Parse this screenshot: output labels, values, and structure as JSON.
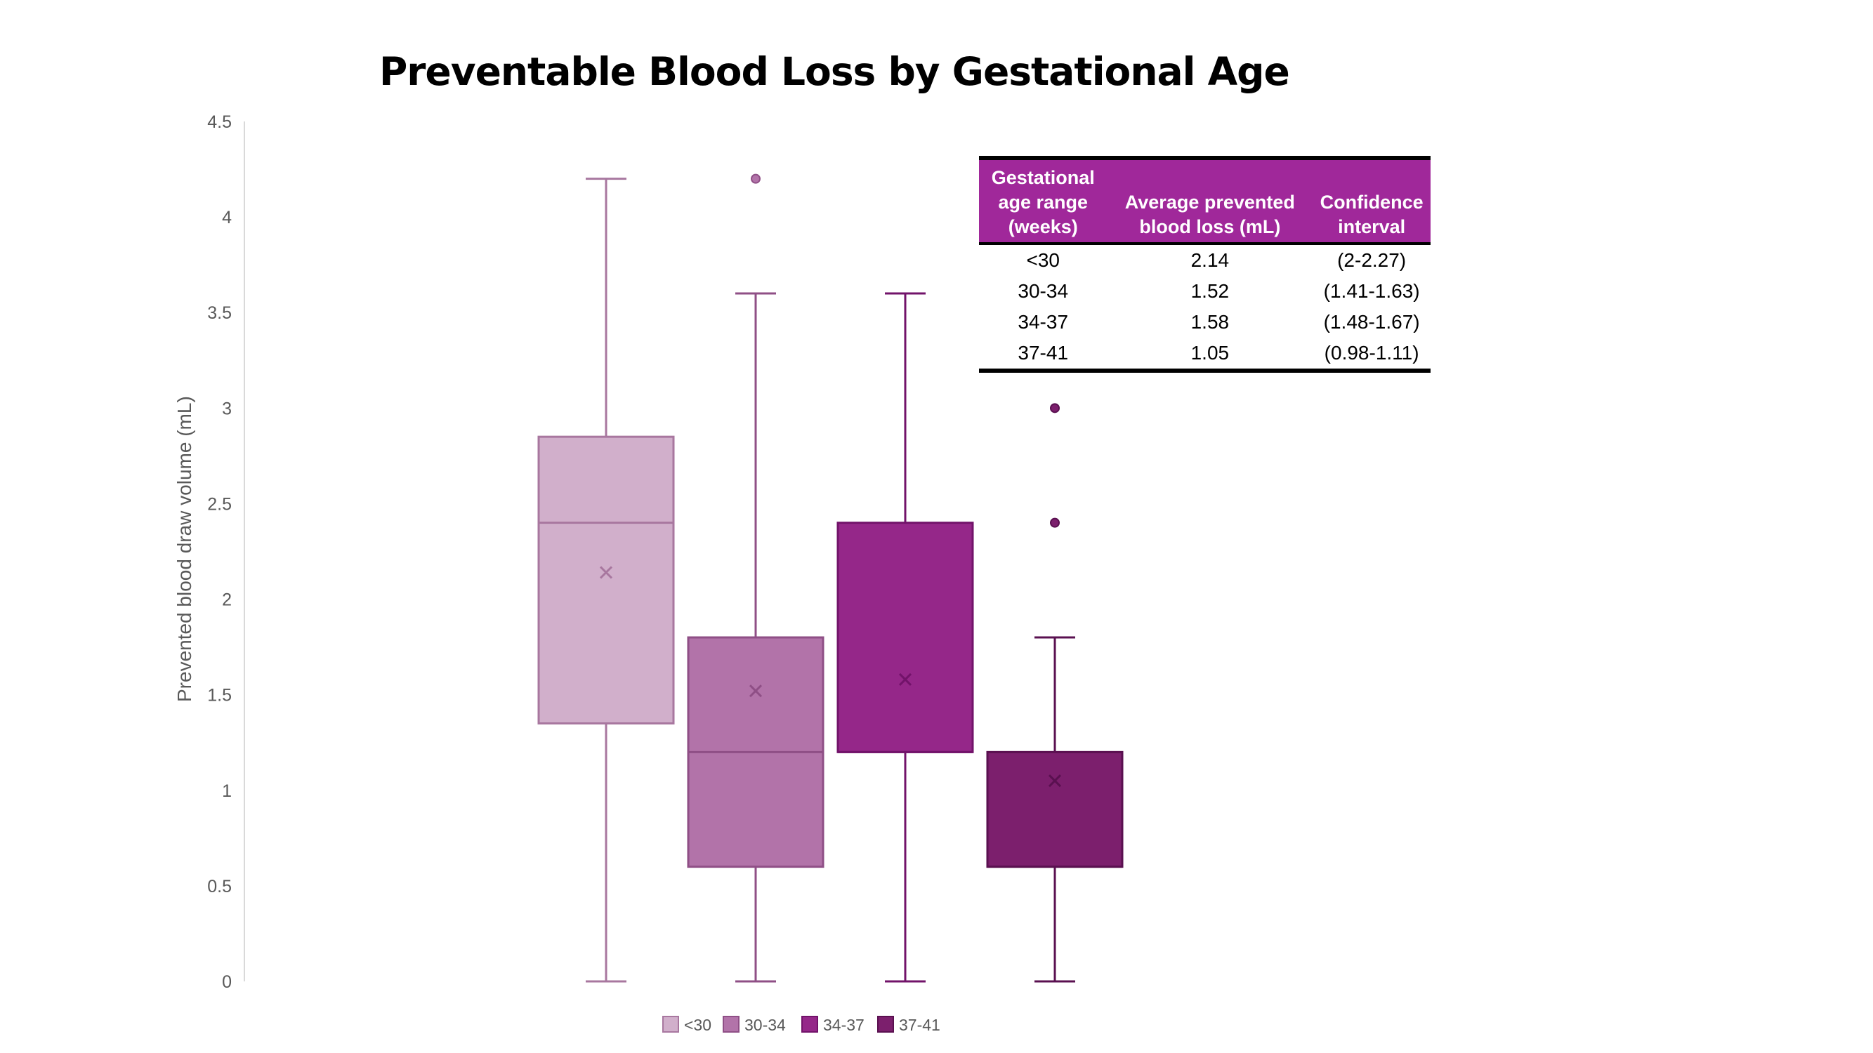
{
  "chart_data": {
    "type": "box",
    "title": "Preventable Blood Loss by Gestational Age",
    "ylabel": "Prevented blood draw volume (mL)",
    "xlabel": "",
    "ylim": [
      0,
      4.5
    ],
    "yticks": [
      "0",
      "0.5",
      "1",
      "1.5",
      "2",
      "2.5",
      "3",
      "3.5",
      "4",
      "4.5"
    ],
    "grid": false,
    "legend_position": "bottom",
    "series": [
      {
        "name": "<30",
        "min": 0,
        "q1": 1.35,
        "median": 2.4,
        "q3": 2.85,
        "max": 4.2,
        "mean": 2.14,
        "outliers": [],
        "fill": "#d1afcb",
        "stroke": "#a8779f"
      },
      {
        "name": "30-34",
        "min": 0,
        "q1": 0.6,
        "median": 1.2,
        "q3": 1.8,
        "max": 3.6,
        "mean": 1.52,
        "outliers": [
          4.2
        ],
        "fill": "#b273a9",
        "stroke": "#8f4f86"
      },
      {
        "name": "34-37",
        "min": 0,
        "q1": 1.2,
        "median": 1.2,
        "q3": 2.4,
        "max": 3.6,
        "mean": 1.58,
        "outliers": [],
        "fill": "#952789",
        "stroke": "#72136a"
      },
      {
        "name": "37-41",
        "min": 0,
        "q1": 0.6,
        "median": 0.6,
        "q3": 1.2,
        "max": 1.8,
        "mean": 1.05,
        "outliers": [
          2.4,
          3.0
        ],
        "fill": "#7c1f6d",
        "stroke": "#5a1050"
      }
    ]
  },
  "table": {
    "headers": [
      "Gestational age range (weeks)",
      "Average prevented blood loss (mL)",
      "Confidence interval"
    ],
    "rows": [
      [
        "<30",
        "2.14",
        "(2-2.27)"
      ],
      [
        "30-34",
        "1.52",
        "(1.41-1.63)"
      ],
      [
        "34-37",
        "1.58",
        "(1.48-1.67)"
      ],
      [
        "37-41",
        "1.05",
        "(0.98-1.11)"
      ]
    ]
  }
}
